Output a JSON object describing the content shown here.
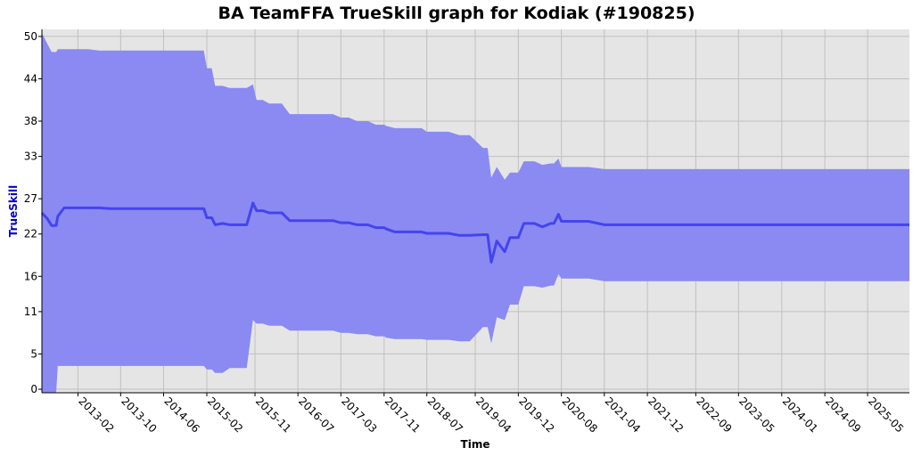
{
  "chart_data": {
    "type": "area",
    "title": "BA TeamFFA TrueSkill graph for Kodiak (#190825)",
    "xlabel": "Time",
    "ylabel": "TrueSkill",
    "ylim": [
      -0.5,
      51
    ],
    "y_ticks": [
      0,
      5,
      11,
      16,
      22,
      27,
      33,
      38,
      44,
      50
    ],
    "x_range": [
      "2012-07-12",
      "2025-12-24"
    ],
    "x_ticks": [
      "2013-02",
      "2013-10",
      "2014-06",
      "2015-02",
      "2015-11",
      "2016-07",
      "2017-03",
      "2017-11",
      "2018-07",
      "2019-04",
      "2019-12",
      "2020-08",
      "2021-04",
      "2021-12",
      "2022-09",
      "2023-05",
      "2024-01",
      "2024-09",
      "2025-05"
    ],
    "grid": true,
    "colors": {
      "band": "#8a8af2",
      "line": "#4444ee",
      "plot_bg": "#e5e5e5",
      "ylabel": "#0000cc",
      "grid": "#c0c0c0"
    },
    "series": [
      {
        "x": [
          "2012-07-12",
          "2012-08-11",
          "2012-09-05",
          "2012-10-01",
          "2012-10-10",
          "2012-11-15",
          "2013-01-15",
          "2013-04-01",
          "2013-06-01",
          "2013-08-01",
          "2014-01-01",
          "2014-06-01",
          "2014-10-01",
          "2015-01-15",
          "2015-02-01",
          "2015-03-01",
          "2015-03-20",
          "2015-05-01",
          "2015-06-10",
          "2015-09-15",
          "2015-10-20",
          "2015-11-10",
          "2015-12-15",
          "2016-01-20",
          "2016-04-01",
          "2016-05-15",
          "2016-06-10",
          "2016-08-01",
          "2016-11-01",
          "2017-01-15",
          "2017-03-01",
          "2017-04-15",
          "2017-06-01",
          "2017-08-01",
          "2017-09-15",
          "2017-11-01",
          "2017-11-15",
          "2018-01-01",
          "2018-06-01",
          "2018-07-01",
          "2018-08-01",
          "2018-11-01",
          "2019-01-01",
          "2019-03-01",
          "2019-05-15",
          "2019-06-10",
          "2019-07-01",
          "2019-08-01",
          "2019-09-15",
          "2019-10-15",
          "2019-12-01",
          "2020-01-01",
          "2020-03-01",
          "2020-04-15",
          "2020-06-01",
          "2020-06-20",
          "2020-07-15",
          "2020-08-01",
          "2020-08-20",
          "2020-10-01",
          "2021-01-01",
          "2021-04-01",
          "2021-05-01",
          "2025-12-24"
        ],
        "mean": [
          25.0,
          24.2,
          23.2,
          23.2,
          24.5,
          25.7,
          25.7,
          25.7,
          25.7,
          25.6,
          25.6,
          25.6,
          25.6,
          25.6,
          24.3,
          24.3,
          23.3,
          23.5,
          23.3,
          23.3,
          26.4,
          25.3,
          25.3,
          25.0,
          25.0,
          23.9,
          23.9,
          23.9,
          23.9,
          23.9,
          23.6,
          23.6,
          23.3,
          23.3,
          22.9,
          22.9,
          22.7,
          22.3,
          22.3,
          22.1,
          22.1,
          22.1,
          21.8,
          21.8,
          21.9,
          21.9,
          18.0,
          21.0,
          19.5,
          21.5,
          21.5,
          23.5,
          23.5,
          23.0,
          23.5,
          23.5,
          24.8,
          23.8,
          23.8,
          23.8,
          23.8,
          23.3,
          23.3,
          23.3
        ],
        "upper": [
          50.5,
          49.0,
          47.8,
          47.8,
          48.2,
          48.2,
          48.2,
          48.2,
          48.0,
          48.0,
          48.0,
          48.0,
          48.0,
          48.0,
          45.5,
          45.5,
          43.0,
          43.0,
          42.7,
          42.7,
          43.2,
          41.0,
          41.0,
          40.5,
          40.5,
          39.0,
          39.0,
          39.0,
          39.0,
          39.0,
          38.5,
          38.5,
          38.0,
          38.0,
          37.5,
          37.5,
          37.3,
          37.0,
          37.0,
          36.5,
          36.5,
          36.5,
          36.0,
          36.0,
          34.2,
          34.2,
          30.0,
          31.5,
          29.7,
          30.7,
          30.7,
          32.3,
          32.3,
          31.8,
          32.0,
          32.0,
          32.7,
          31.5,
          31.5,
          31.5,
          31.5,
          31.2,
          31.2,
          31.2
        ],
        "lower": [
          -1.5,
          -1.5,
          -1.5,
          -1.5,
          3.3,
          3.3,
          3.3,
          3.3,
          3.3,
          3.3,
          3.3,
          3.3,
          3.3,
          3.3,
          2.8,
          2.8,
          2.3,
          2.3,
          3.0,
          3.0,
          9.8,
          9.3,
          9.3,
          9.0,
          9.0,
          8.3,
          8.3,
          8.3,
          8.3,
          8.3,
          8.0,
          8.0,
          7.8,
          7.8,
          7.5,
          7.5,
          7.3,
          7.1,
          7.1,
          7.0,
          7.0,
          7.0,
          6.8,
          6.8,
          8.8,
          8.8,
          6.5,
          10.2,
          9.8,
          12.0,
          12.0,
          14.6,
          14.6,
          14.4,
          14.7,
          14.7,
          16.3,
          15.7,
          15.7,
          15.7,
          15.7,
          15.3,
          15.3,
          15.3
        ]
      }
    ]
  }
}
